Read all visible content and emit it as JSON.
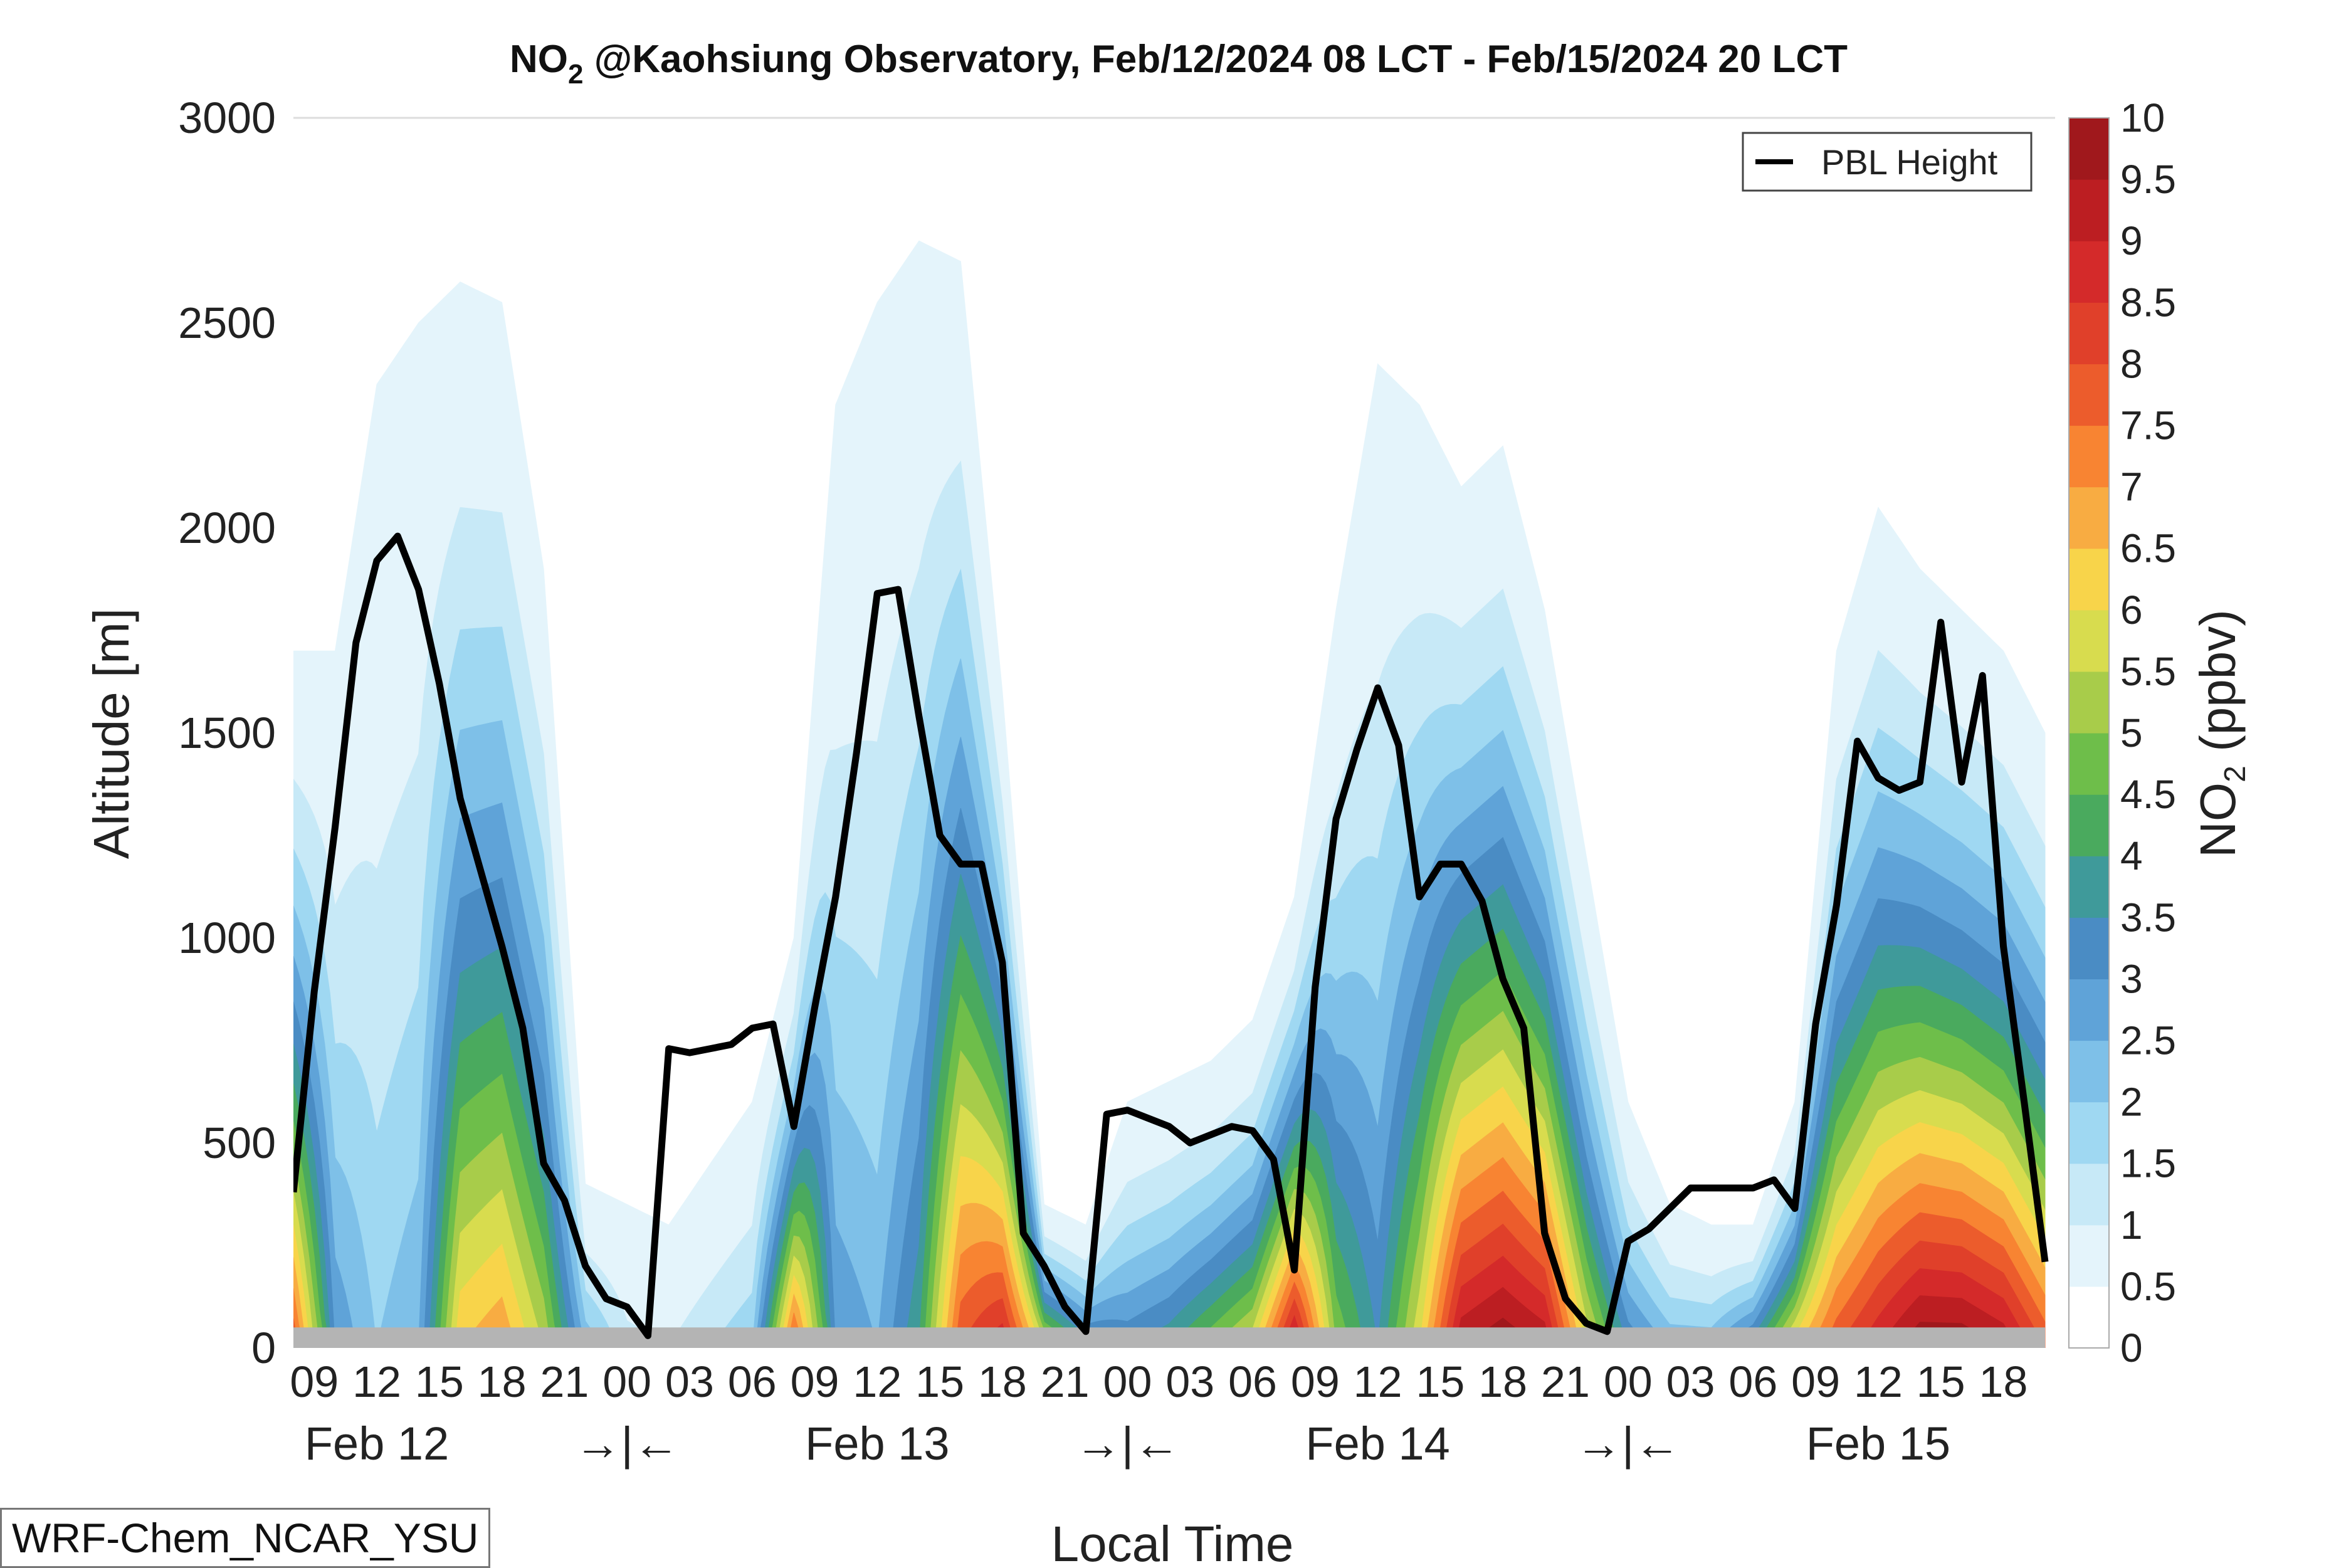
{
  "chart_data": {
    "type": "heatmap",
    "title_main": "NO",
    "title_sub": "2",
    "title_rest": " @Kaohsiung Observatory, Feb/12/2024 08 LCT - Feb/15/2024 20 LCT",
    "xlabel": "Local Time",
    "ylabel": "Altitude [m]",
    "ylim": [
      0,
      3000
    ],
    "yticks": [
      "0",
      "500",
      "1000",
      "1500",
      "2000",
      "2500",
      "3000"
    ],
    "xlim_hours": [
      8,
      92
    ],
    "xticks": [
      {
        "h": 9,
        "label": "09"
      },
      {
        "h": 12,
        "label": "12"
      },
      {
        "h": 15,
        "label": "15"
      },
      {
        "h": 18,
        "label": "18"
      },
      {
        "h": 21,
        "label": "21"
      },
      {
        "h": 24,
        "label": "00"
      },
      {
        "h": 27,
        "label": "03"
      },
      {
        "h": 30,
        "label": "06"
      },
      {
        "h": 33,
        "label": "09"
      },
      {
        "h": 36,
        "label": "12"
      },
      {
        "h": 39,
        "label": "15"
      },
      {
        "h": 42,
        "label": "18"
      },
      {
        "h": 45,
        "label": "21"
      },
      {
        "h": 48,
        "label": "00"
      },
      {
        "h": 51,
        "label": "03"
      },
      {
        "h": 54,
        "label": "06"
      },
      {
        "h": 57,
        "label": "09"
      },
      {
        "h": 60,
        "label": "12"
      },
      {
        "h": 63,
        "label": "15"
      },
      {
        "h": 66,
        "label": "18"
      },
      {
        "h": 69,
        "label": "21"
      },
      {
        "h": 72,
        "label": "00"
      },
      {
        "h": 75,
        "label": "03"
      },
      {
        "h": 78,
        "label": "06"
      },
      {
        "h": 81,
        "label": "09"
      },
      {
        "h": 84,
        "label": "12"
      },
      {
        "h": 87,
        "label": "15"
      },
      {
        "h": 90,
        "label": "18"
      }
    ],
    "day_labels": [
      {
        "h": 12,
        "label": "Feb 12"
      },
      {
        "h": 36,
        "label": "Feb 13"
      },
      {
        "h": 60,
        "label": "Feb 14"
      },
      {
        "h": 84,
        "label": "Feb 15"
      }
    ],
    "day_separators": [
      {
        "h": 24,
        "label": "→|←"
      },
      {
        "h": 48,
        "label": "→|←"
      },
      {
        "h": 72,
        "label": "→|←"
      }
    ],
    "colorbar": {
      "label_main": "NO",
      "label_sub": "2",
      "label_rest": " (ppbv)",
      "ticks": [
        "0",
        "0.5",
        "1",
        "1.5",
        "2",
        "2.5",
        "3",
        "3.5",
        "4",
        "4.5",
        "5",
        "5.5",
        "6",
        "6.5",
        "7",
        "7.5",
        "8",
        "8.5",
        "9",
        "9.5",
        "10"
      ],
      "colors": [
        "#ffffff",
        "#e4f4fb",
        "#c7e9f7",
        "#9fd8f2",
        "#7ec0e8",
        "#5fa3d8",
        "#4a8cc4",
        "#3f9a9a",
        "#4aaa5e",
        "#6ebe4a",
        "#a8cc4a",
        "#d8dc4e",
        "#f8d44a",
        "#f8ac42",
        "#f88432",
        "#ec5c2c",
        "#e0402a",
        "#d42a2a",
        "#bc1e22",
        "#a0181c"
      ]
    },
    "legend": {
      "label": "PBL Height",
      "position": "top-right"
    },
    "model_label": "WRF-Chem_NCAR_YSU",
    "pbl_height": {
      "t": [
        8,
        9,
        10,
        11,
        12,
        13,
        14,
        15,
        16,
        17,
        18,
        19,
        20,
        21,
        22,
        23,
        23.5,
        24,
        25,
        26,
        27,
        28,
        29,
        30,
        31,
        32,
        33,
        34,
        35,
        36,
        37,
        38,
        39,
        40,
        41,
        42,
        43,
        44,
        45,
        46,
        47,
        48,
        49,
        50,
        51,
        52,
        53,
        54,
        55,
        56,
        57,
        58,
        59,
        60,
        61,
        62,
        63,
        64,
        65,
        66,
        67,
        68,
        69,
        70,
        71,
        72,
        73,
        74,
        75,
        76,
        77,
        78,
        79,
        80,
        81,
        82,
        83,
        84,
        85,
        86,
        87,
        88,
        89,
        90,
        91,
        92
      ],
      "v": [
        380,
        870,
        1270,
        1720,
        1920,
        1980,
        1850,
        1620,
        1340,
        1160,
        980,
        780,
        450,
        360,
        200,
        120,
        110,
        100,
        30,
        730,
        720,
        730,
        740,
        780,
        790,
        540,
        830,
        1100,
        1450,
        1840,
        1850,
        1540,
        1250,
        1180,
        1180,
        940,
        280,
        200,
        100,
        40,
        570,
        580,
        560,
        540,
        500,
        520,
        540,
        530,
        460,
        190,
        880,
        1290,
        1460,
        1610,
        1470,
        1100,
        1180,
        1180,
        1090,
        900,
        780,
        280,
        120,
        60,
        40,
        260,
        290,
        340,
        390,
        390,
        390,
        390,
        410,
        340,
        790,
        1080,
        1480,
        1390,
        1360,
        1380,
        1770,
        1380,
        1640,
        980,
        600,
        210
      ]
    },
    "no2_field": {
      "description_of_units": "surface value, decay height",
      "t": [
        8,
        10,
        12,
        14,
        16,
        18,
        20,
        22,
        24,
        26,
        28,
        30,
        32,
        34,
        36,
        38,
        40,
        42,
        44,
        46,
        48,
        50,
        52,
        54,
        56,
        58,
        60,
        62,
        64,
        66,
        68,
        70,
        72,
        74,
        76,
        78,
        80,
        82,
        84,
        86,
        88,
        90,
        92
      ],
      "surface": [
        8,
        3,
        2,
        2.5,
        6.5,
        7,
        5.5,
        2.5,
        1.2,
        1,
        1.5,
        2,
        8,
        3,
        2.5,
        4,
        8,
        9,
        6,
        4,
        3.5,
        4,
        5,
        6,
        9.5,
        5,
        3.5,
        6,
        9.5,
        10,
        9.5,
        6,
        3.5,
        2.5,
        2.5,
        4,
        6.5,
        8,
        9,
        10,
        10,
        9.5,
        8
      ],
      "topfill": [
        1700,
        1700,
        2350,
        2500,
        2600,
        2550,
        1900,
        400,
        350,
        300,
        450,
        600,
        1000,
        2300,
        2550,
        2700,
        2650,
        1600,
        350,
        300,
        600,
        650,
        700,
        800,
        1100,
        1800,
        2400,
        2300,
        2100,
        2200,
        1800,
        1200,
        600,
        350,
        300,
        300,
        600,
        1700,
        2050,
        1900,
        1800,
        1700,
        1500
      ]
    }
  }
}
